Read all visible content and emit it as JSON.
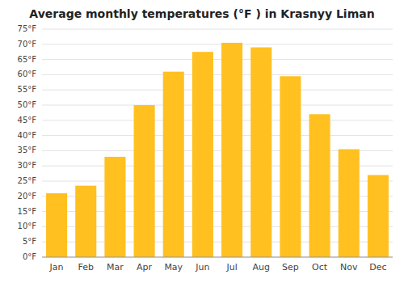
{
  "chart_data": {
    "type": "bar",
    "title": "Average monthly temperatures (°F ) in Krasnyy Liman",
    "categories": [
      "Jan",
      "Feb",
      "Mar",
      "Apr",
      "May",
      "Jun",
      "Jul",
      "Aug",
      "Sep",
      "Oct",
      "Nov",
      "Dec"
    ],
    "values": [
      21,
      23.5,
      33,
      50,
      61,
      67.5,
      70.5,
      69,
      59.5,
      47,
      35.5,
      27
    ],
    "color": "#FFC020",
    "ylim": [
      0,
      75
    ],
    "yticks": [
      {
        "value": 0,
        "label": "0°F"
      },
      {
        "value": 5,
        "label": "5°F"
      },
      {
        "value": 10,
        "label": "10°F"
      },
      {
        "value": 15,
        "label": "15°F"
      },
      {
        "value": 20,
        "label": "20°F"
      },
      {
        "value": 25,
        "label": "25°F"
      },
      {
        "value": 30,
        "label": "30°F"
      },
      {
        "value": 35,
        "label": "35°F"
      },
      {
        "value": 40,
        "label": "40°F"
      },
      {
        "value": 45,
        "label": "45°F"
      },
      {
        "value": 50,
        "label": "50°F"
      },
      {
        "value": 55,
        "label": "55°F"
      },
      {
        "value": 60,
        "label": "60°F"
      },
      {
        "value": 65,
        "label": "65°F"
      },
      {
        "value": 70,
        "label": "70°F"
      },
      {
        "value": 75,
        "label": "75°F"
      }
    ],
    "grid": true
  }
}
